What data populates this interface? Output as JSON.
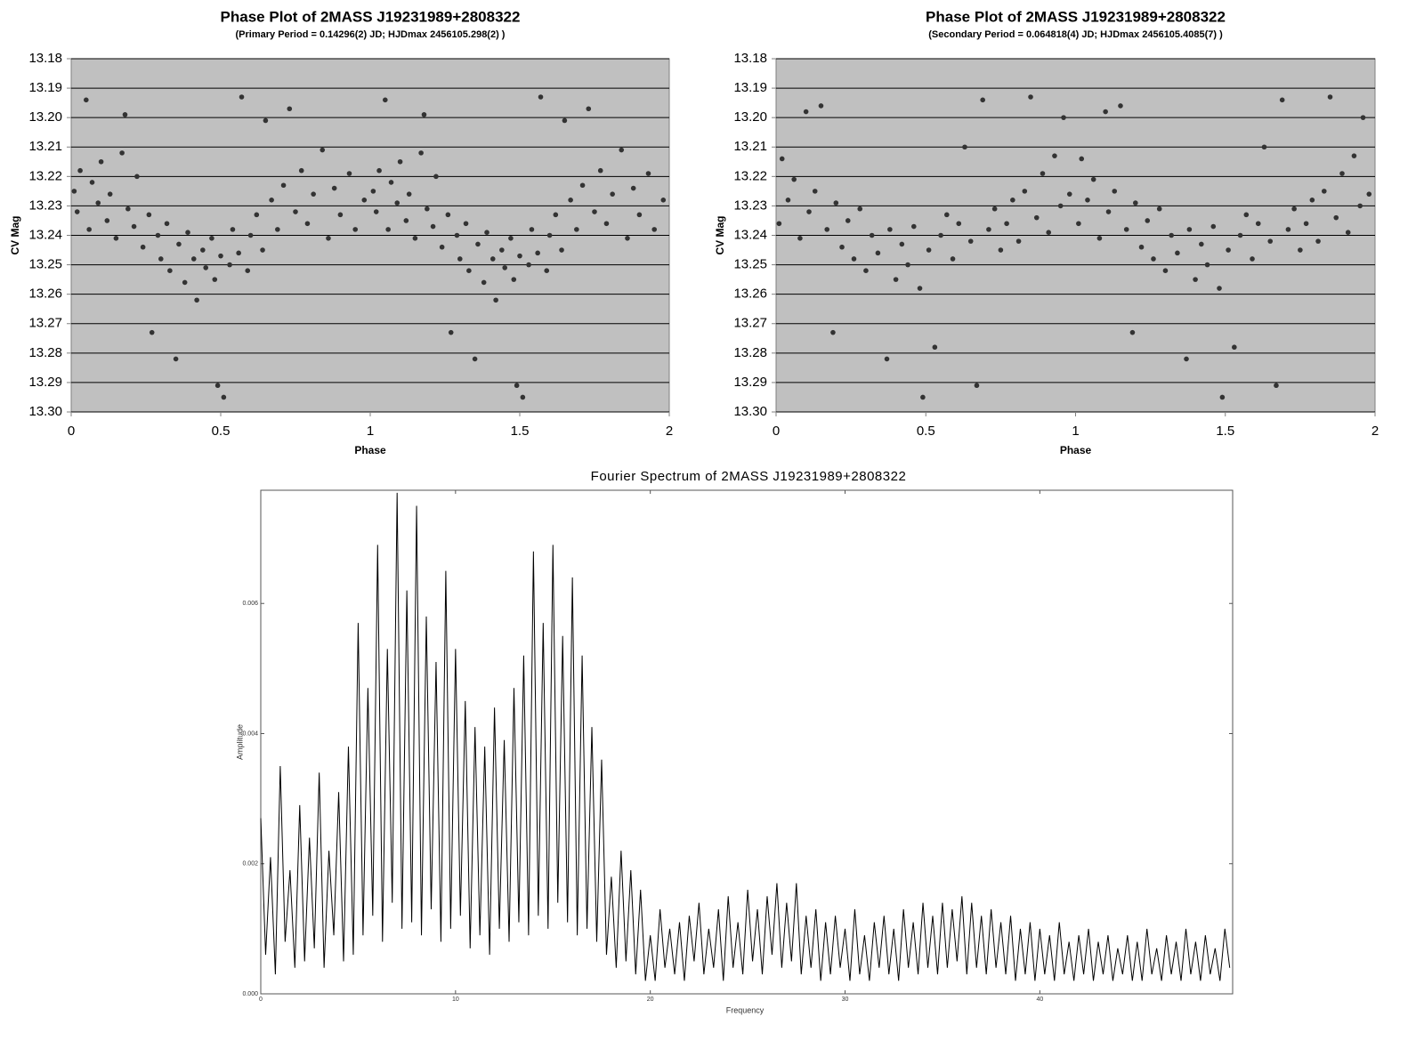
{
  "chart_data": [
    {
      "type": "scatter",
      "title": "Phase Plot of 2MASS J19231989+2808322",
      "subtitle": "(Primary Period = 0.14296(2) JD; HJDmax 2456105.298(2) )",
      "x_label": "Phase",
      "y_label": "CV Mag",
      "color": "#333333",
      "background": "#c0c0c0",
      "grid": true,
      "y_reversed": true,
      "xlim": [
        0,
        2
      ],
      "xticks": [
        0,
        0.5,
        1,
        1.5,
        2
      ],
      "ylim": [
        13.18,
        13.3
      ],
      "yticks": [
        13.18,
        13.19,
        {
          "value": 13.2,
          "label": "13.20"
        },
        13.21,
        13.22,
        13.23,
        13.24,
        13.25,
        13.26,
        13.27,
        13.28,
        13.29,
        {
          "value": 13.3,
          "label": "13.30"
        }
      ],
      "x": [
        0.01,
        0.02,
        0.03,
        0.05,
        0.06,
        0.07,
        0.09,
        0.1,
        0.12,
        0.13,
        0.15,
        0.17,
        0.18,
        0.19,
        0.21,
        0.22,
        0.24,
        0.26,
        0.27,
        0.29,
        0.3,
        0.32,
        0.33,
        0.35,
        0.36,
        0.38,
        0.39,
        0.41,
        0.42,
        0.44,
        0.45,
        0.47,
        0.48,
        0.49,
        0.5,
        0.51,
        0.53,
        0.54,
        0.56,
        0.57,
        0.59,
        0.6,
        0.62,
        0.64,
        0.65,
        0.67,
        0.69,
        0.71,
        0.73,
        0.75,
        0.77,
        0.79,
        0.81,
        0.84,
        0.86,
        0.88,
        0.9,
        0.93,
        0.95,
        0.98,
        1.01,
        1.02,
        1.03,
        1.05,
        1.06,
        1.07,
        1.09,
        1.1,
        1.12,
        1.13,
        1.15,
        1.17,
        1.18,
        1.19,
        1.21,
        1.22,
        1.24,
        1.26,
        1.27,
        1.29,
        1.3,
        1.32,
        1.33,
        1.35,
        1.36,
        1.38,
        1.39,
        1.41,
        1.42,
        1.44,
        1.45,
        1.47,
        1.48,
        1.49,
        1.5,
        1.51,
        1.53,
        1.54,
        1.56,
        1.57,
        1.59,
        1.6,
        1.62,
        1.64,
        1.65,
        1.67,
        1.69,
        1.71,
        1.73,
        1.75,
        1.77,
        1.79,
        1.81,
        1.84,
        1.86,
        1.88,
        1.9,
        1.93,
        1.95,
        1.98
      ],
      "values": [
        13.225,
        13.232,
        13.218,
        13.194,
        13.238,
        13.222,
        13.229,
        13.215,
        13.235,
        13.226,
        13.241,
        13.212,
        13.199,
        13.231,
        13.237,
        13.22,
        13.244,
        13.233,
        13.273,
        13.24,
        13.248,
        13.236,
        13.252,
        13.282,
        13.243,
        13.256,
        13.239,
        13.248,
        13.262,
        13.245,
        13.251,
        13.241,
        13.255,
        13.291,
        13.247,
        13.295,
        13.25,
        13.238,
        13.246,
        13.193,
        13.252,
        13.24,
        13.233,
        13.245,
        13.201,
        13.228,
        13.238,
        13.223,
        13.197,
        13.232,
        13.218,
        13.236,
        13.226,
        13.211,
        13.241,
        13.224,
        13.233,
        13.219,
        13.238,
        13.228,
        13.225,
        13.232,
        13.218,
        13.194,
        13.238,
        13.222,
        13.229,
        13.215,
        13.235,
        13.226,
        13.241,
        13.212,
        13.199,
        13.231,
        13.237,
        13.22,
        13.244,
        13.233,
        13.273,
        13.24,
        13.248,
        13.236,
        13.252,
        13.282,
        13.243,
        13.256,
        13.239,
        13.248,
        13.262,
        13.245,
        13.251,
        13.241,
        13.255,
        13.291,
        13.247,
        13.295,
        13.25,
        13.238,
        13.246,
        13.193,
        13.252,
        13.24,
        13.233,
        13.245,
        13.201,
        13.228,
        13.238,
        13.223,
        13.197,
        13.232,
        13.218,
        13.236,
        13.226,
        13.211,
        13.241,
        13.224,
        13.233,
        13.219,
        13.238,
        13.228
      ]
    },
    {
      "type": "scatter",
      "title": "Phase Plot of 2MASS J19231989+2808322",
      "subtitle": "(Secondary Period = 0.064818(4) JD; HJDmax 2456105.4085(7) )",
      "x_label": "Phase",
      "y_label": "CV Mag",
      "color": "#333333",
      "background": "#c0c0c0",
      "grid": true,
      "y_reversed": true,
      "xlim": [
        0,
        2
      ],
      "xticks": [
        0,
        0.5,
        1,
        1.5,
        2
      ],
      "ylim": [
        13.18,
        13.3
      ],
      "yticks": [
        13.18,
        13.19,
        {
          "value": 13.2,
          "label": "13.20"
        },
        13.21,
        13.22,
        13.23,
        13.24,
        13.25,
        13.26,
        13.27,
        13.28,
        13.29,
        {
          "value": 13.3,
          "label": "13.30"
        }
      ],
      "x": [
        0.01,
        0.02,
        0.04,
        0.06,
        0.08,
        0.1,
        0.11,
        0.13,
        0.15,
        0.17,
        0.19,
        0.2,
        0.22,
        0.24,
        0.26,
        0.28,
        0.3,
        0.32,
        0.34,
        0.37,
        0.38,
        0.4,
        0.42,
        0.44,
        0.46,
        0.48,
        0.49,
        0.51,
        0.53,
        0.55,
        0.57,
        0.59,
        0.61,
        0.63,
        0.65,
        0.67,
        0.69,
        0.71,
        0.73,
        0.75,
        0.77,
        0.79,
        0.81,
        0.83,
        0.85,
        0.87,
        0.89,
        0.91,
        0.93,
        0.95,
        0.96,
        0.98,
        1.01,
        1.02,
        1.04,
        1.06,
        1.08,
        1.1,
        1.11,
        1.13,
        1.15,
        1.17,
        1.19,
        1.2,
        1.22,
        1.24,
        1.26,
        1.28,
        1.3,
        1.32,
        1.34,
        1.37,
        1.38,
        1.4,
        1.42,
        1.44,
        1.46,
        1.48,
        1.49,
        1.51,
        1.53,
        1.55,
        1.57,
        1.59,
        1.61,
        1.63,
        1.65,
        1.67,
        1.69,
        1.71,
        1.73,
        1.75,
        1.77,
        1.79,
        1.81,
        1.83,
        1.85,
        1.87,
        1.89,
        1.91,
        1.93,
        1.95,
        1.96,
        1.98
      ],
      "values": [
        13.236,
        13.214,
        13.228,
        13.221,
        13.241,
        13.198,
        13.232,
        13.225,
        13.196,
        13.238,
        13.273,
        13.229,
        13.244,
        13.235,
        13.248,
        13.231,
        13.252,
        13.24,
        13.246,
        13.282,
        13.238,
        13.255,
        13.243,
        13.25,
        13.237,
        13.258,
        13.295,
        13.245,
        13.278,
        13.24,
        13.233,
        13.248,
        13.236,
        13.21,
        13.242,
        13.291,
        13.194,
        13.238,
        13.231,
        13.245,
        13.236,
        13.228,
        13.242,
        13.225,
        13.193,
        13.234,
        13.219,
        13.239,
        13.213,
        13.23,
        13.2,
        13.226,
        13.236,
        13.214,
        13.228,
        13.221,
        13.241,
        13.198,
        13.232,
        13.225,
        13.196,
        13.238,
        13.273,
        13.229,
        13.244,
        13.235,
        13.248,
        13.231,
        13.252,
        13.24,
        13.246,
        13.282,
        13.238,
        13.255,
        13.243,
        13.25,
        13.237,
        13.258,
        13.295,
        13.245,
        13.278,
        13.24,
        13.233,
        13.248,
        13.236,
        13.21,
        13.242,
        13.291,
        13.194,
        13.238,
        13.231,
        13.245,
        13.236,
        13.228,
        13.242,
        13.225,
        13.193,
        13.234,
        13.219,
        13.239,
        13.213,
        13.23,
        13.2,
        13.226
      ]
    },
    {
      "type": "line",
      "title": "Fourier Spectrum of 2MASS J19231989+2808322",
      "x_label": "Frequency",
      "y_label": "Amplitude",
      "color": "#000000",
      "background": "#ffffff",
      "grid": false,
      "xlim": [
        0,
        49.9
      ],
      "xticks": [
        0,
        10,
        20,
        30,
        40
      ],
      "ylim": [
        0,
        0.00774
      ],
      "yticks": [
        {
          "value": 0,
          "label": "0.000"
        },
        {
          "value": 0.002,
          "label": "0.002"
        },
        {
          "value": 0.004,
          "label": "0.004"
        },
        {
          "value": 0.006,
          "label": "0.006"
        }
      ],
      "x": [
        0,
        0.25,
        0.5,
        0.75,
        1,
        1.25,
        1.5,
        1.75,
        2,
        2.25,
        2.5,
        2.75,
        3,
        3.25,
        3.5,
        3.75,
        4,
        4.25,
        4.5,
        4.75,
        5,
        5.25,
        5.5,
        5.75,
        6,
        6.25,
        6.5,
        6.75,
        7,
        7.25,
        7.5,
        7.75,
        8,
        8.25,
        8.5,
        8.75,
        9,
        9.25,
        9.5,
        9.75,
        10,
        10.25,
        10.5,
        10.75,
        11,
        11.25,
        11.5,
        11.75,
        12,
        12.25,
        12.5,
        12.75,
        13,
        13.25,
        13.5,
        13.75,
        14,
        14.25,
        14.5,
        14.75,
        15,
        15.25,
        15.5,
        15.75,
        16,
        16.25,
        16.5,
        16.75,
        17,
        17.25,
        17.5,
        17.75,
        18,
        18.25,
        18.5,
        18.75,
        19,
        19.25,
        19.5,
        19.75,
        20,
        20.25,
        20.5,
        20.75,
        21,
        21.25,
        21.5,
        21.75,
        22,
        22.25,
        22.5,
        22.75,
        23,
        23.25,
        23.5,
        23.75,
        24,
        24.25,
        24.5,
        24.75,
        25,
        25.25,
        25.5,
        25.75,
        26,
        26.25,
        26.5,
        26.75,
        27,
        27.25,
        27.5,
        27.75,
        28,
        28.25,
        28.5,
        28.75,
        29,
        29.25,
        29.5,
        29.75,
        30,
        30.25,
        30.5,
        30.75,
        31,
        31.25,
        31.5,
        31.75,
        32,
        32.25,
        32.5,
        32.75,
        33,
        33.25,
        33.5,
        33.75,
        34,
        34.25,
        34.5,
        34.75,
        35,
        35.25,
        35.5,
        35.75,
        36,
        36.25,
        36.5,
        36.75,
        37,
        37.25,
        37.5,
        37.75,
        38,
        38.25,
        38.5,
        38.75,
        39,
        39.25,
        39.5,
        39.75,
        40,
        40.25,
        40.5,
        40.75,
        41,
        41.25,
        41.5,
        41.75,
        42,
        42.25,
        42.5,
        42.75,
        43,
        43.25,
        43.5,
        43.75,
        44,
        44.25,
        44.5,
        44.75,
        45,
        45.25,
        45.5,
        45.75,
        46,
        46.25,
        46.5,
        46.75,
        47,
        47.25,
        47.5,
        47.75,
        48,
        48.25,
        48.5,
        48.75,
        49,
        49.25,
        49.5,
        49.75
      ],
      "values": [
        0.0027,
        0.0006,
        0.0021,
        0.0003,
        0.0035,
        0.0008,
        0.0019,
        0.0004,
        0.0029,
        0.0005,
        0.0024,
        0.0007,
        0.0034,
        0.0004,
        0.0022,
        0.0009,
        0.0031,
        0.0005,
        0.0038,
        0.0006,
        0.0057,
        0.0009,
        0.0047,
        0.0012,
        0.0069,
        0.0008,
        0.0053,
        0.0014,
        0.0077,
        0.001,
        0.0062,
        0.0011,
        0.0075,
        0.0009,
        0.0058,
        0.0013,
        0.0051,
        0.0008,
        0.0065,
        0.001,
        0.0053,
        0.0012,
        0.0045,
        0.0007,
        0.0041,
        0.0009,
        0.0038,
        0.0006,
        0.0044,
        0.001,
        0.0039,
        0.0008,
        0.0047,
        0.0011,
        0.0052,
        0.0009,
        0.0068,
        0.0012,
        0.0057,
        0.001,
        0.0069,
        0.0014,
        0.0055,
        0.0011,
        0.0064,
        0.0009,
        0.0052,
        0.001,
        0.0041,
        0.0008,
        0.0036,
        0.0006,
        0.0018,
        0.0004,
        0.0022,
        0.0005,
        0.0019,
        0.0003,
        0.0016,
        0.0002,
        0.0009,
        0.0002,
        0.0013,
        0.0004,
        0.001,
        0.0003,
        0.0011,
        0.0002,
        0.0012,
        0.0005,
        0.0014,
        0.0003,
        0.001,
        0.0004,
        0.0013,
        0.0002,
        0.0015,
        0.0004,
        0.0011,
        0.0003,
        0.0016,
        0.0005,
        0.0013,
        0.0003,
        0.0015,
        0.0006,
        0.0017,
        0.0004,
        0.0014,
        0.0005,
        0.0017,
        0.0003,
        0.0012,
        0.0004,
        0.0013,
        0.0002,
        0.0011,
        0.0003,
        0.0012,
        0.0004,
        0.001,
        0.0002,
        0.0013,
        0.0003,
        0.0009,
        0.0002,
        0.0011,
        0.0004,
        0.0012,
        0.0003,
        0.001,
        0.0002,
        0.0013,
        0.0004,
        0.0011,
        0.0003,
        0.0014,
        0.0004,
        0.0012,
        0.0003,
        0.0014,
        0.0004,
        0.0013,
        0.0005,
        0.0015,
        0.0003,
        0.0014,
        0.0004,
        0.0012,
        0.0003,
        0.0013,
        0.0004,
        0.0011,
        0.0003,
        0.0012,
        0.0002,
        0.001,
        0.0003,
        0.0011,
        0.0002,
        0.001,
        0.0003,
        0.0009,
        0.0002,
        0.0011,
        0.0003,
        0.0008,
        0.0002,
        0.0009,
        0.0003,
        0.001,
        0.0002,
        0.0008,
        0.0003,
        0.0009,
        0.0002,
        0.0007,
        0.0003,
        0.0009,
        0.0002,
        0.0008,
        0.0002,
        0.001,
        0.0003,
        0.0007,
        0.0002,
        0.0009,
        0.0003,
        0.0008,
        0.0002,
        0.001,
        0.0003,
        0.0008,
        0.0002,
        0.0009,
        0.0003,
        0.0007,
        0.0002,
        0.001,
        0.0004
      ]
    }
  ]
}
